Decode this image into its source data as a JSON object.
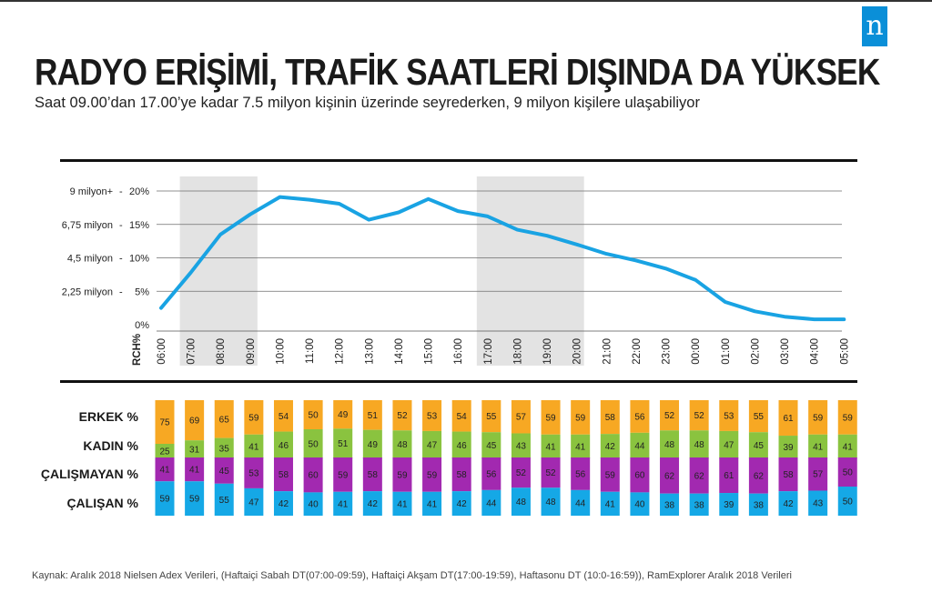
{
  "logo": {
    "letter": "n"
  },
  "header": {
    "title": "RADYO ERİŞİMİ, TRAFİK SAATLERİ DIŞINDA DA YÜKSEK",
    "subtitle": "Saat 09.00’dan 17.00’ye kadar 7.5 milyon kişinin üzerinde seyrederken, 9 milyon kişilere ulaşabiliyor"
  },
  "source": "Kaynak: Aralık 2018 Nielsen Adex Verileri, (Haftaiçi Sabah DT(07:00-09:59), Haftaiçi Akşam DT(17:00-19:59), Haftasonu DT (10:0-16:59)), RamExplorer  Aralık 2018 Verileri",
  "colors": {
    "line": "#19a3e3",
    "shade": "#e3e3e3",
    "erkek": "#f7a823",
    "kadin": "#8ac33f",
    "calismayan": "#a229b0",
    "calisan": "#15a8e6"
  },
  "chart_data": [
    {
      "type": "line",
      "ylabel": "RCH%",
      "ylim": [
        0,
        20
      ],
      "yticks": [
        "0%",
        "5%",
        "10%",
        "15%",
        "20%"
      ],
      "y_secondary_labels": [
        "2,25 milyon",
        "4,5 milyon",
        "6,75 milyon",
        "9 milyon+"
      ],
      "grid": true,
      "x": [
        "06:00",
        "07:00",
        "08:00",
        "09:00",
        "10:00",
        "11:00",
        "12:00",
        "13:00",
        "14:00",
        "15:00",
        "16:00",
        "17:00",
        "18:00",
        "19:00",
        "20:00",
        "21:00",
        "22:00",
        "23:00",
        "00:00",
        "01:00",
        "02:00",
        "03:00",
        "04:00",
        "05:00"
      ],
      "series": [
        {
          "values": [
            2.5,
            7.8,
            13.5,
            16.5,
            19.1,
            18.7,
            18.1,
            15.7,
            16.8,
            18.8,
            17.0,
            16.2,
            14.2,
            13.3,
            12.0,
            10.6,
            9.6,
            8.4,
            6.7,
            3.4,
            2.0,
            1.2,
            0.8,
            0.8
          ]
        }
      ],
      "shaded_ranges": [
        [
          "07:00",
          "09:00"
        ],
        [
          "17:00",
          "20:00"
        ]
      ]
    },
    {
      "type": "bar",
      "stacked": true,
      "categories": [
        "06:00",
        "07:00",
        "08:00",
        "09:00",
        "10:00",
        "11:00",
        "12:00",
        "13:00",
        "14:00",
        "15:00",
        "16:00",
        "17:00",
        "18:00",
        "19:00",
        "20:00",
        "21:00",
        "22:00",
        "23:00",
        "00:00",
        "01:00",
        "02:00",
        "03:00",
        "04:00",
        "05:00"
      ],
      "groups": [
        {
          "series": [
            {
              "name": "ERKEK %",
              "values": [
                75,
                69,
                65,
                59,
                54,
                50,
                49,
                51,
                52,
                53,
                54,
                55,
                57,
                59,
                59,
                58,
                56,
                52,
                52,
                53,
                55,
                61,
                59,
                59
              ]
            },
            {
              "name": "KADIN %",
              "values": [
                25,
                31,
                35,
                41,
                46,
                50,
                51,
                49,
                48,
                47,
                46,
                45,
                43,
                41,
                41,
                42,
                44,
                48,
                48,
                47,
                45,
                39,
                41,
                41
              ]
            }
          ]
        },
        {
          "series": [
            {
              "name": "ÇALIŞMAYAN %",
              "values": [
                41,
                41,
                45,
                53,
                58,
                60,
                59,
                58,
                59,
                59,
                58,
                56,
                52,
                52,
                56,
                59,
                60,
                62,
                62,
                61,
                62,
                58,
                57,
                50
              ]
            },
            {
              "name": "ÇALIŞAN %",
              "values": [
                59,
                59,
                55,
                47,
                42,
                40,
                41,
                42,
                41,
                41,
                42,
                44,
                48,
                48,
                44,
                41,
                40,
                38,
                38,
                39,
                38,
                42,
                43,
                50
              ]
            }
          ]
        }
      ]
    }
  ]
}
